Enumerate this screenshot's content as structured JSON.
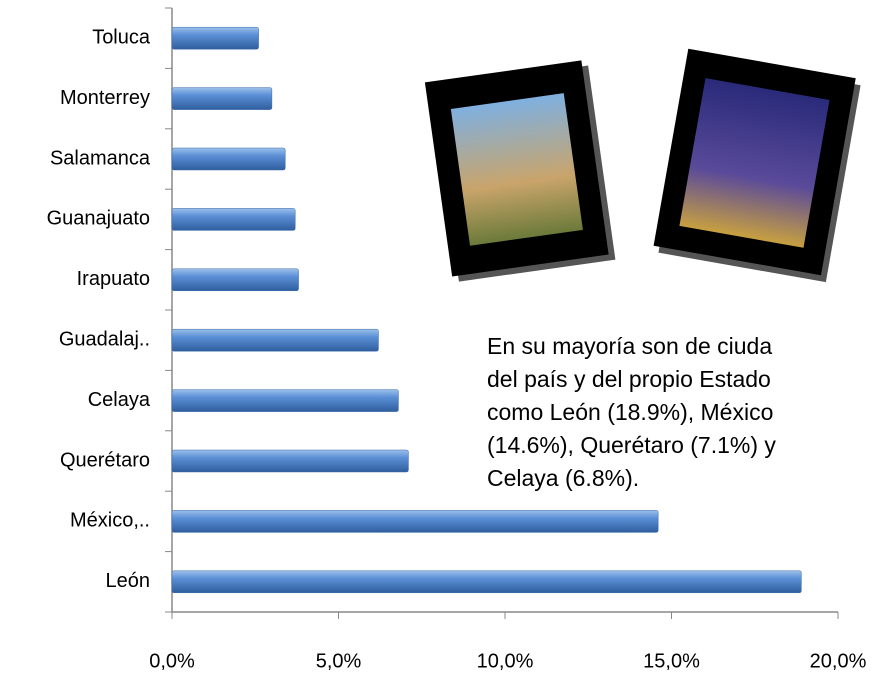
{
  "chart_data": {
    "type": "bar",
    "orientation": "horizontal",
    "categories": [
      "Toluca",
      "Monterrey",
      "Salamanca",
      "Guanajuato",
      "Irapuato",
      "Guadalaj..",
      "Celaya",
      "Querétaro",
      "México,..",
      "León"
    ],
    "values": [
      2.6,
      3.0,
      3.4,
      3.7,
      3.8,
      6.2,
      6.8,
      7.1,
      14.6,
      18.9
    ],
    "color": "#4f81bd",
    "xlim": [
      0,
      20
    ],
    "xticks": [
      {
        "value": 0,
        "label": "0,0%"
      },
      {
        "value": 5,
        "label": "5,0%"
      },
      {
        "value": 10,
        "label": "10,0%"
      },
      {
        "value": 15,
        "label": "15,0%"
      },
      {
        "value": 20,
        "label": "20,0%"
      }
    ],
    "annotation": [
      "En su mayoría son de ciuda",
      "del país y del propio Estado",
      "como León (18.9%), México",
      "(14.6%), Querétaro (7.1%) y",
      "Celaya (6.8%)."
    ]
  }
}
